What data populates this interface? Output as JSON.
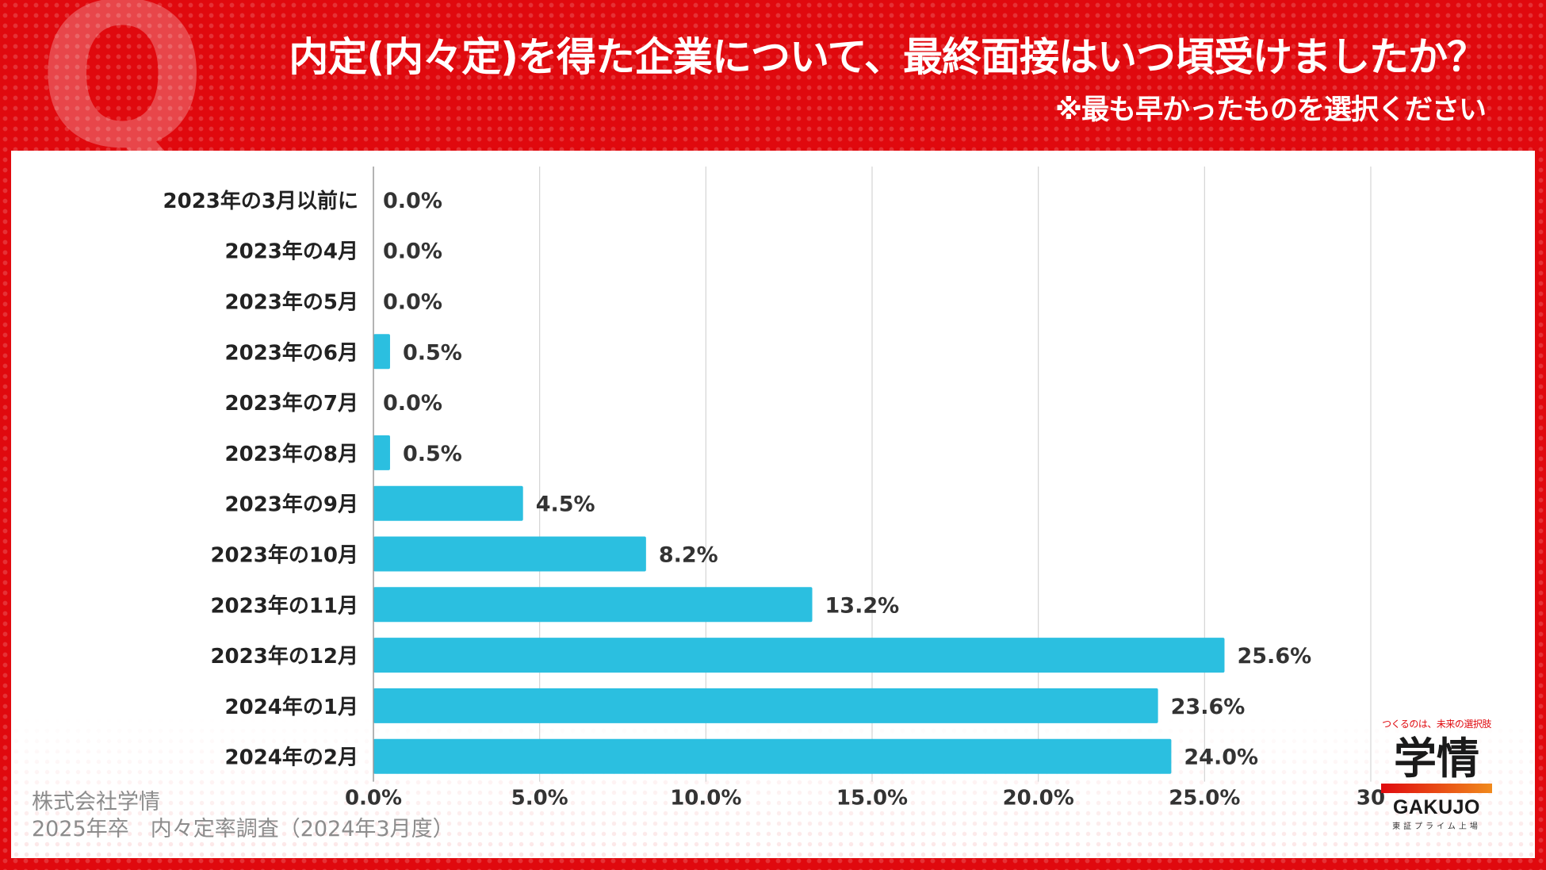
{
  "header": {
    "q_mark": "Q",
    "title": "内定(内々定)を得た企業について、最終面接はいつ頃受けましたか？",
    "subtitle": "※最も早かったものを選択ください"
  },
  "source": {
    "line1": "株式会社学情",
    "line2": "2025年卒　内々定率調査（2024年3月度）"
  },
  "logo": {
    "tagline": "つくるのは、未来の選択肢",
    "kanji": "学情",
    "english": "GAKUJO",
    "sub": "東証プライム上場"
  },
  "colors": {
    "bar": "#2bbfe0",
    "background": "#e0090e",
    "text": "#333333"
  },
  "chart_data": {
    "type": "bar",
    "orientation": "horizontal",
    "categories": [
      "2023年の3月以前に",
      "2023年の4月",
      "2023年の5月",
      "2023年の6月",
      "2023年の7月",
      "2023年の8月",
      "2023年の9月",
      "2023年の10月",
      "2023年の11月",
      "2023年の12月",
      "2024年の1月",
      "2024年の2月"
    ],
    "values": [
      0.0,
      0.0,
      0.0,
      0.5,
      0.0,
      0.5,
      4.5,
      8.2,
      13.2,
      25.6,
      23.6,
      24.0
    ],
    "value_labels": [
      "0.0%",
      "0.0%",
      "0.0%",
      "0.5%",
      "0.0%",
      "0.5%",
      "4.5%",
      "8.2%",
      "13.2%",
      "25.6%",
      "23.6%",
      "24.0%"
    ],
    "xlim": [
      0,
      30
    ],
    "xticks": [
      0,
      5,
      10,
      15,
      20,
      25,
      30
    ],
    "xtick_labels": [
      "0.0%",
      "5.0%",
      "10.0%",
      "15.0%",
      "20.0%",
      "25.0%",
      "30"
    ],
    "grid": true,
    "legend": "none"
  }
}
